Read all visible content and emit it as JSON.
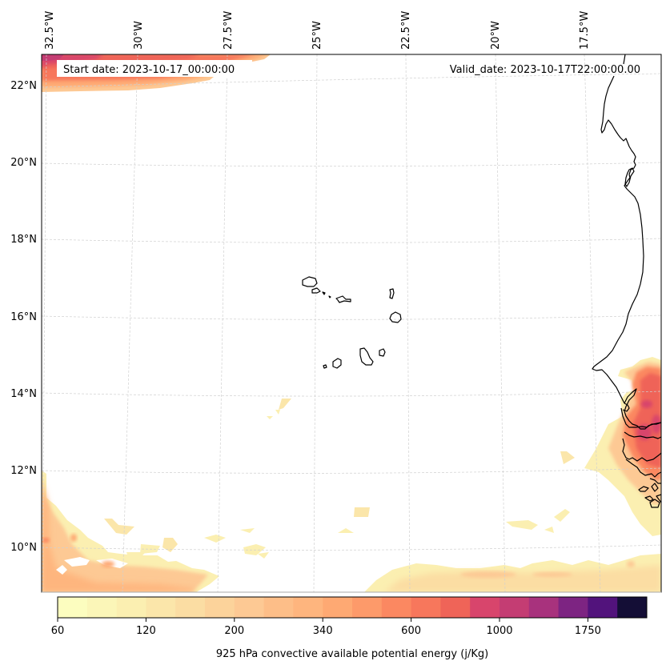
{
  "chart_data": {
    "type": "heatmap",
    "subtype": "filled-contour-map",
    "projection": "conic (Lambert-like), gridlines curved",
    "title": "",
    "variable": "925 hPa convective available potential energy",
    "units": "j/Kg",
    "colorbar_label": "925 hPa convective available potential energy (j/Kg)",
    "colormap": "magma_r",
    "levels_shown_as_ticks": [
      60,
      120,
      200,
      340,
      600,
      1000,
      1750
    ],
    "colorbar_segments": 20,
    "segment_colors": [
      "#fcfdbf",
      "#fbf6b8",
      "#fbefb1",
      "#fbe6aa",
      "#fbdda3",
      "#fcd39b",
      "#fdc994",
      "#fdbe88",
      "#feb57e",
      "#fea973",
      "#fd9a6a",
      "#fb8861",
      "#f7775c",
      "#ef6458",
      "#d8456c",
      "#c43d73",
      "#a8327d",
      "#7d2482",
      "#52137c",
      "#140e36"
    ],
    "colorbar_tick_positions": [
      0,
      3,
      6,
      9,
      12,
      15,
      18
    ],
    "lon_ticks": [
      "32.5°W",
      "30°W",
      "27.5°W",
      "25°W",
      "22.5°W",
      "20°W",
      "17.5°W"
    ],
    "lat_ticks": [
      "22°N",
      "20°N",
      "18°N",
      "16°N",
      "14°N",
      "12°N",
      "10°N"
    ],
    "extent": {
      "lon_min": -32.6,
      "lon_max": -16.0,
      "lat_min": 8.8,
      "lat_max": 22.8
    },
    "gridlines": true,
    "features": {
      "coastline": "West African coast (Western Sahara, Mauritania, Senegal, Gambia, Guinea-Bissau, Bijagos Islands)",
      "islands": "Cape Verde archipelago"
    },
    "regions": [
      {
        "name": "northwest band",
        "location": "top-left, ~22–22.8°N, 32.6–26.5°W",
        "value_range": [
          340,
          1250
        ],
        "peak_approx": 1250
      },
      {
        "name": "Senegal / Gambia / Guinea-Bissau",
        "location": "right edge, ~10.8–14.8°N, 17.5–16°W",
        "value_range": [
          60,
          1250
        ],
        "peak_approx": 1250
      },
      {
        "name": "southern ITCZ band",
        "location": "bottom, ~8.8–9.8°N, 25.5–16°W",
        "value_range": [
          60,
          400
        ]
      },
      {
        "name": "southwest region",
        "location": "bottom-left, ~8.8–12°N, 32.6–28°W",
        "value_range": [
          60,
          500
        ]
      },
      {
        "name": "scattered small patches",
        "location": "around 9.8–13.8°N",
        "value_range": [
          60,
          200
        ]
      }
    ]
  },
  "annotations": {
    "start_date": "Start date: 2023-10-17_00:00:00",
    "valid_date": "Valid_date: 2023-10-17T22:00:00.00"
  }
}
